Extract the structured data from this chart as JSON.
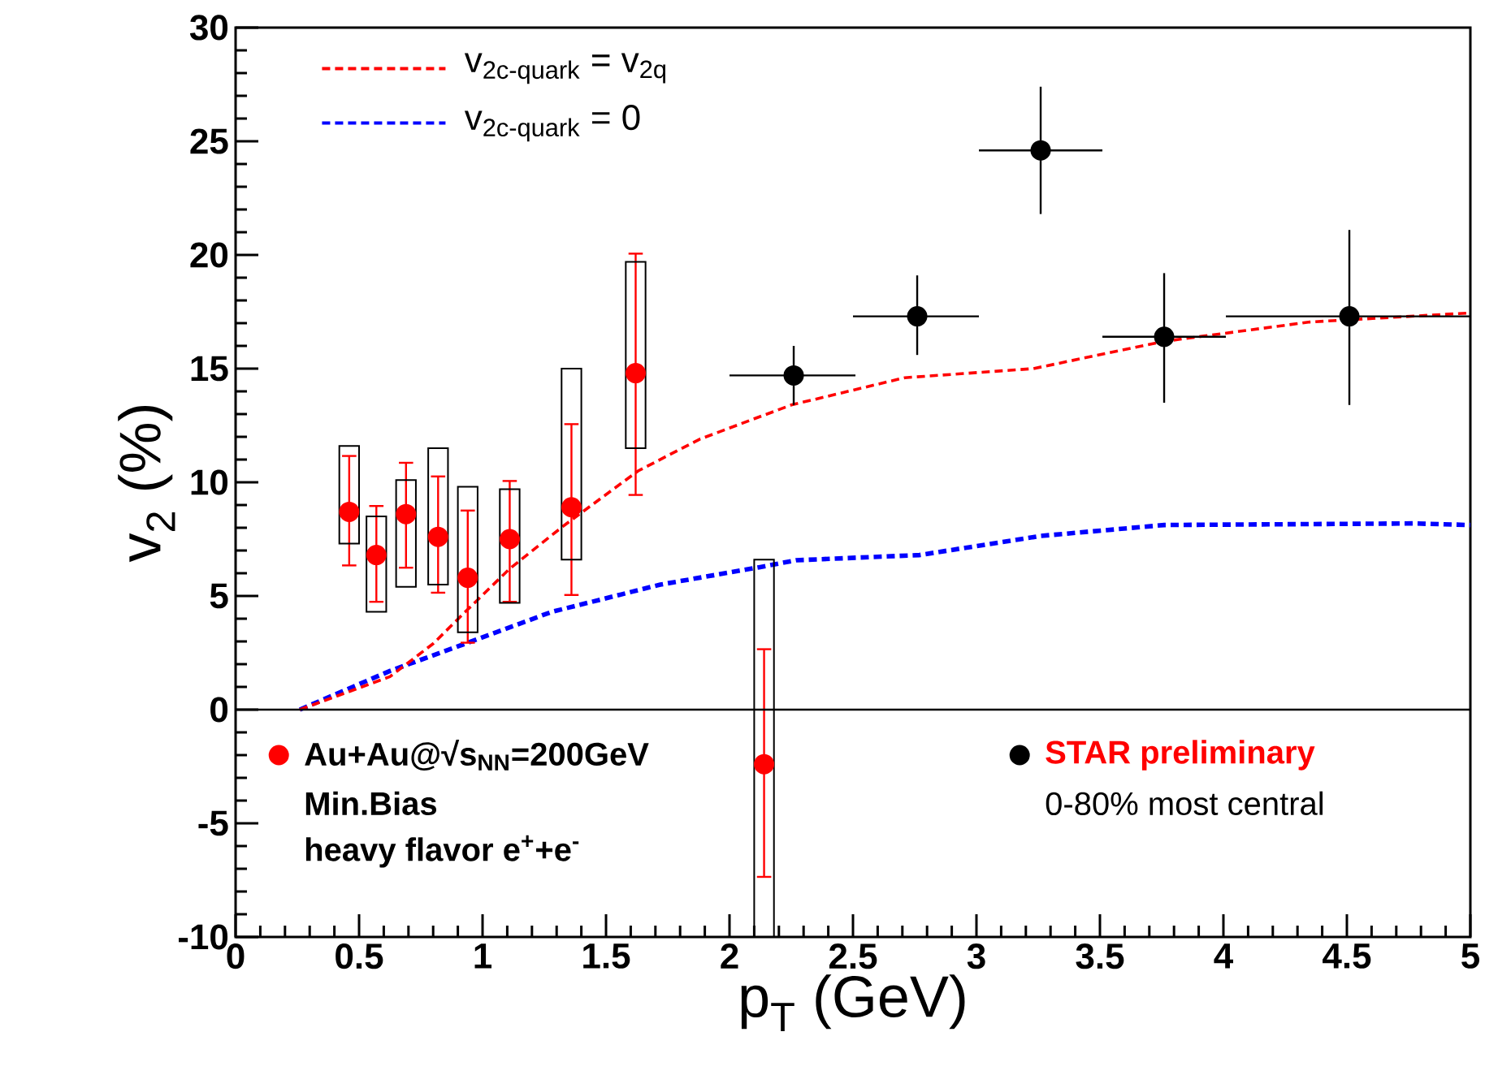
{
  "chart_data": {
    "type": "scatter",
    "xlabel": "p$_{T}$ (GeV)",
    "ylabel": "v$_{2}$ (%)",
    "xlim": [
      0,
      5
    ],
    "ylim": [
      -10,
      30
    ],
    "xticks": [
      0,
      0.5,
      1,
      1.5,
      2,
      2.5,
      3,
      3.5,
      4,
      4.5,
      5
    ],
    "yticks": [
      -10,
      -5,
      0,
      5,
      10,
      15,
      20,
      25,
      30
    ],
    "legend": "top left",
    "marker": "circle",
    "ref_lines": [
      {
        "axis": "y",
        "value": 0,
        "color": "#000000"
      }
    ],
    "annotations": [
      "Min.Bias",
      "heavy flavor e$^{+}$+e$^{-}$",
      "0-80% most central"
    ],
    "series": [
      {
        "type": "line",
        "marker": "none",
        "name": "v$_{2c-quark}$ = v$_{2q}$",
        "color": "#ff0000",
        "line_style": "dashed",
        "x": [
          0.26,
          0.625,
          0.8,
          0.93,
          1.11,
          1.33,
          1.63,
          1.88,
          2.25,
          2.71,
          3.23,
          3.76,
          4.35,
          5.0
        ],
        "values": [
          0,
          1.45,
          2.9,
          4.3,
          6.2,
          8.1,
          10.5,
          11.9,
          13.4,
          14.6,
          15.0,
          16.2,
          17.05,
          17.45
        ]
      },
      {
        "type": "line",
        "marker": "none",
        "name": "v$_{2c-quark}$ = 0",
        "color": "#0000ff",
        "line_style": "dashed",
        "x": [
          0.26,
          0.625,
          0.93,
          1.28,
          1.72,
          2.12,
          2.27,
          2.77,
          3.26,
          3.76,
          4.77,
          5.0
        ],
        "values": [
          0,
          1.7,
          2.9,
          4.3,
          5.5,
          6.26,
          6.57,
          6.8,
          7.64,
          8.12,
          8.19,
          8.12
        ]
      },
      {
        "type": "bar",
        "color": "#000000",
        "x": [
          0.46,
          0.57,
          0.69,
          0.82,
          0.94,
          1.11,
          1.36,
          1.62,
          2.14
        ],
        "base": [
          7.3,
          4.3,
          5.4,
          5.5,
          3.4,
          4.7,
          6.6,
          11.5,
          -10
        ],
        "values": [
          4.3,
          4.2,
          4.7,
          6.0,
          6.4,
          5.0,
          8.4,
          8.2,
          16.6
        ]
      },
      {
        "name": "Au+Au@√s$_{NN}$=200GeV",
        "color": "#ff0000",
        "x": [
          0.46,
          0.57,
          0.69,
          0.82,
          0.94,
          1.11,
          1.36,
          1.62,
          2.14
        ],
        "values": [
          8.7,
          6.8,
          8.6,
          7.6,
          5.8,
          7.5,
          8.9,
          14.8,
          -2.4
        ],
        "errors": [
          [
            6.3,
            11.2
          ],
          [
            4.7,
            9.0
          ],
          [
            6.2,
            10.9
          ],
          [
            5.1,
            10.3
          ],
          [
            2.9,
            8.8
          ],
          [
            4.7,
            10.1
          ],
          [
            5.0,
            12.6
          ],
          [
            9.4,
            20.1
          ],
          [
            -7.4,
            2.7
          ]
        ]
      },
      {
        "name": "STAR preliminary",
        "color": "#000000",
        "x": [
          2.26,
          2.76,
          3.26,
          3.76,
          4.51
        ],
        "values": [
          14.7,
          17.3,
          24.6,
          16.4,
          17.3
        ],
        "errors": [
          [
            13.4,
            16.0
          ],
          [
            15.6,
            19.1
          ],
          [
            21.8,
            27.4
          ],
          [
            13.5,
            19.2
          ],
          [
            13.4,
            21.1
          ]
        ],
        "xerrors": [
          [
            2.0,
            2.51
          ],
          [
            2.5,
            3.01
          ],
          [
            3.01,
            3.51
          ],
          [
            3.51,
            4.01
          ],
          [
            4.01,
            5.0
          ]
        ]
      }
    ]
  }
}
